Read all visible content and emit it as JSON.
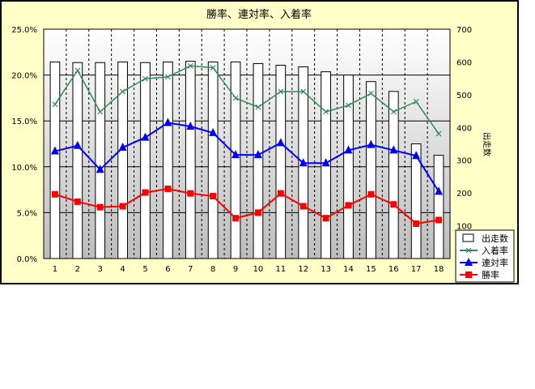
{
  "chart_data": {
    "type": "bar+line",
    "title": "勝率、連対率、入着率",
    "categories": [
      "1",
      "2",
      "3",
      "4",
      "5",
      "6",
      "7",
      "8",
      "9",
      "10",
      "11",
      "12",
      "13",
      "14",
      "15",
      "16",
      "17",
      "18"
    ],
    "left_axis": {
      "min": 0,
      "max": 25,
      "step": 5,
      "tick_labels": [
        "0.0%",
        "5.0%",
        "10.0%",
        "15.0%",
        "20.0%",
        "25.0%"
      ]
    },
    "right_axis": {
      "label": "出走数",
      "min": 0,
      "max": 700,
      "step": 100,
      "tick_labels": [
        "100",
        "200",
        "300",
        "400",
        "500",
        "600",
        "700"
      ]
    },
    "series": [
      {
        "name": "出走数",
        "axis": "right",
        "kind": "bar",
        "color": "#ffffff",
        "values": [
          600,
          598,
          598,
          600,
          598,
          600,
          602,
          600,
          600,
          595,
          590,
          585,
          570,
          560,
          540,
          510,
          350,
          315
        ]
      },
      {
        "name": "入着率",
        "axis": "left",
        "kind": "line",
        "color": "#2e8b57",
        "marker": "tick",
        "values": [
          16.8,
          20.5,
          16.0,
          18.2,
          19.6,
          19.8,
          21.0,
          20.8,
          17.5,
          16.5,
          18.2,
          18.2,
          16.0,
          16.7,
          18.0,
          16.0,
          17.1,
          13.6
        ]
      },
      {
        "name": "連対率",
        "axis": "left",
        "kind": "line",
        "color": "#0000ff",
        "marker": "triangle",
        "values": [
          11.7,
          12.3,
          9.7,
          12.1,
          13.2,
          14.8,
          14.4,
          13.7,
          11.3,
          11.3,
          12.6,
          10.4,
          10.4,
          11.8,
          12.4,
          11.8,
          11.2,
          7.3
        ]
      },
      {
        "name": "勝率",
        "axis": "left",
        "kind": "line",
        "color": "#ff0000",
        "marker": "square",
        "values": [
          7.0,
          6.2,
          5.6,
          5.7,
          7.2,
          7.6,
          7.1,
          6.8,
          4.4,
          5.0,
          7.1,
          5.7,
          4.4,
          5.8,
          7.0,
          5.9,
          3.8,
          4.2
        ]
      }
    ],
    "legend": {
      "placement": "right",
      "entries": [
        "出走数",
        "入着率",
        "連対率",
        "勝率"
      ]
    },
    "grid": true
  },
  "colors": {
    "frame_background": "#ffffc8",
    "plot_background_top": "#ffffff",
    "plot_background_bottom": "#c0c0c0"
  }
}
